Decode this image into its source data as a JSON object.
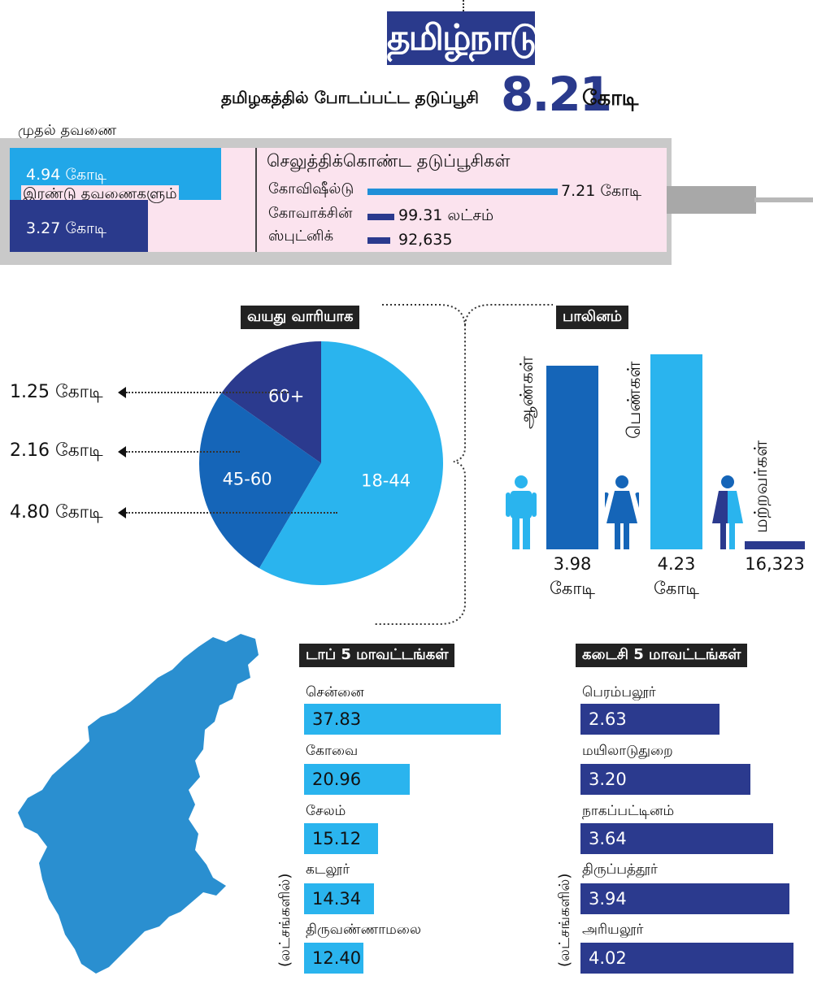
{
  "header": {
    "title": "தமிழ்நாடு",
    "subtitle": "தமிழகத்தில் போடப்பட்ட தடுப்பூசி",
    "total_value": "8.21",
    "total_unit": "கோடி"
  },
  "doses": {
    "first_label": "முதல் தவணை",
    "first_value": "4.94 கோடி",
    "second_label": "இரண்டு தவணைகளும்",
    "second_value": "3.27 கோடி"
  },
  "vaccines": {
    "title": "செலுத்திக்கொண்ட தடுப்பூசிகள்",
    "items": [
      {
        "name": "கோவிஷீல்டு",
        "value_text": "7.21 கோடி",
        "share": 1.0
      },
      {
        "name": "கோவாக்சின்",
        "value_text": "99.31 லட்சம்",
        "share": 0.14
      },
      {
        "name": "ஸ்புட்னிக்",
        "value_text": "92,635",
        "share": 0.12
      }
    ]
  },
  "age": {
    "tag": "வயது வாரியாக",
    "slices": [
      {
        "group": "60+",
        "value_text": "1.25 கோடி",
        "value": 1.25,
        "color": "#2b3a8e"
      },
      {
        "group": "45-60",
        "value_text": "2.16 கோடி",
        "value": 2.16,
        "color": "#1565b8"
      },
      {
        "group": "18-44",
        "value_text": "4.80 கோடி",
        "value": 4.8,
        "color": "#2ab4ee"
      }
    ]
  },
  "gender": {
    "tag": "பாலினம்",
    "items": [
      {
        "label": "ஆண்கள்",
        "value_line1": "3.98",
        "value_line2": "கோடி",
        "value": 3.98,
        "color": "#1565b8"
      },
      {
        "label": "பெண்கள்",
        "value_line1": "4.23",
        "value_line2": "கோடி",
        "value": 4.23,
        "color": "#2ab4ee"
      },
      {
        "label": "மற்றவர்கள்",
        "value_line1": "16,323",
        "value_line2": "",
        "value": 0.00016323,
        "color": "#2b3a8e"
      }
    ]
  },
  "top5": {
    "tag": "டாப் 5 மாவட்டங்கள்",
    "unit": "(லட்சங்களில்)",
    "items": [
      {
        "name": "சென்னை",
        "value": "37.83"
      },
      {
        "name": "கோவை",
        "value": "20.96"
      },
      {
        "name": "சேலம்",
        "value": "15.12"
      },
      {
        "name": "கடலூர்",
        "value": "14.34"
      },
      {
        "name": "திருவண்ணாமலை",
        "value": "12.40"
      }
    ]
  },
  "bottom5": {
    "tag": "கடைசி 5 மாவட்டங்கள்",
    "unit": "(லட்சங்களில்)",
    "items": [
      {
        "name": "பெரம்பலூர்",
        "value": "2.63"
      },
      {
        "name": "மயிலாடுதுறை",
        "value": "3.20"
      },
      {
        "name": "நாகப்பட்டினம்",
        "value": "3.64"
      },
      {
        "name": "திருப்பத்தூர்",
        "value": "3.94"
      },
      {
        "name": "அரியலூர்",
        "value": "4.02"
      }
    ]
  },
  "colors": {
    "dark_blue": "#2b3a8e",
    "mid_blue": "#1565b8",
    "light_blue": "#2ab4ee",
    "pink": "#fbe3ee",
    "map_blue": "#2a8fd0"
  },
  "chart_data": [
    {
      "type": "pie",
      "title": "வயது வாரியாக",
      "categories": [
        "60+",
        "45-60",
        "18-44"
      ],
      "values": [
        1.25,
        2.16,
        4.8
      ]
    },
    {
      "type": "bar",
      "title": "பாலினம்",
      "categories": [
        "ஆண்கள்",
        "பெண்கள்",
        "மற்றவர்கள்"
      ],
      "values": [
        3.98,
        4.23,
        0.00016323
      ]
    },
    {
      "type": "bar",
      "title": "டாப் 5 மாவட்டங்கள்",
      "categories": [
        "சென்னை",
        "கோவை",
        "சேலம்",
        "கடலூர்",
        "திருவண்ணாமலை"
      ],
      "values": [
        37.83,
        20.96,
        15.12,
        14.34,
        12.4
      ]
    },
    {
      "type": "bar",
      "title": "கடைசி 5 மாவட்டங்கள்",
      "categories": [
        "பெரம்பலூர்",
        "மயிலாடுதுறை",
        "நாகப்பட்டினம்",
        "திருப்பத்தூர்",
        "அரியலூர்"
      ],
      "values": [
        2.63,
        3.2,
        3.64,
        3.94,
        4.02
      ]
    }
  ]
}
